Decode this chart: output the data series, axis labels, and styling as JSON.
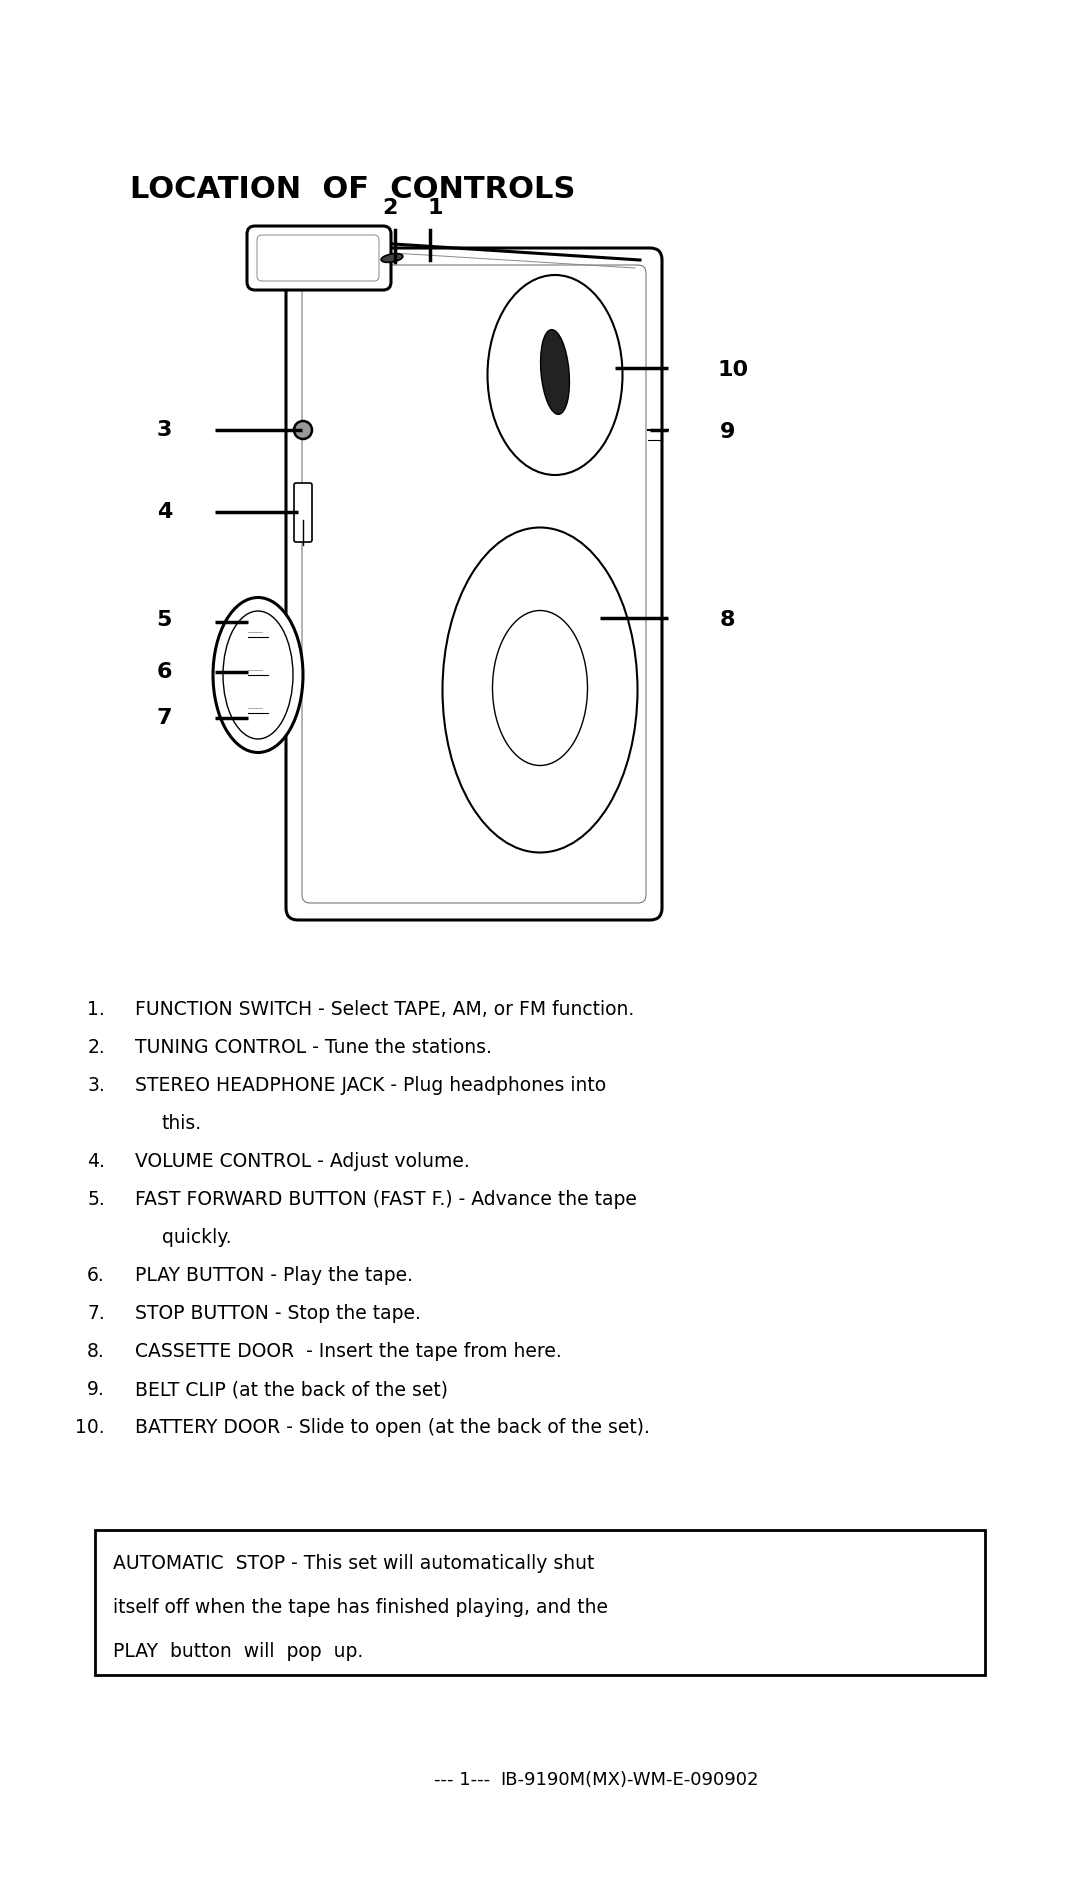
{
  "title": "LOCATION  OF  CONTROLS",
  "background_color": "#ffffff",
  "text_color": "#000000",
  "items_raw": [
    [
      "1.",
      "FUNCTION SWITCH - Select TAPE, AM, or FM function."
    ],
    [
      "2.",
      "TUNING CONTROL - Tune the stations."
    ],
    [
      "3.",
      "STEREO HEADPHONE JACK - Plug headphones into"
    ],
    [
      "",
      "   this."
    ],
    [
      "4.",
      "VOLUME CONTROL - Adjust volume."
    ],
    [
      "5.",
      "FAST FORWARD BUTTON (FAST F.) - Advance the tape"
    ],
    [
      "",
      "   quickly."
    ],
    [
      "6.",
      "PLAY BUTTON - Play the tape."
    ],
    [
      "7.",
      "STOP BUTTON - Stop the tape."
    ],
    [
      "8.",
      "CASSETTE DOOR  - Insert the tape from here."
    ],
    [
      "9.",
      "BELT CLIP (at the back of the set)"
    ],
    [
      "10.",
      "BATTERY DOOR - Slide to open (at the back of the set)."
    ]
  ],
  "note_line1": "AUTOMATIC  STOP - This set will automatically shut",
  "note_line2": "itself off when the tape has finished playing, and the",
  "note_line3": "PLAY  button  will  pop  up.",
  "footer_dashes": "--- 1---",
  "footer_model": "IB-9190M(MX)-WM-E-090902"
}
